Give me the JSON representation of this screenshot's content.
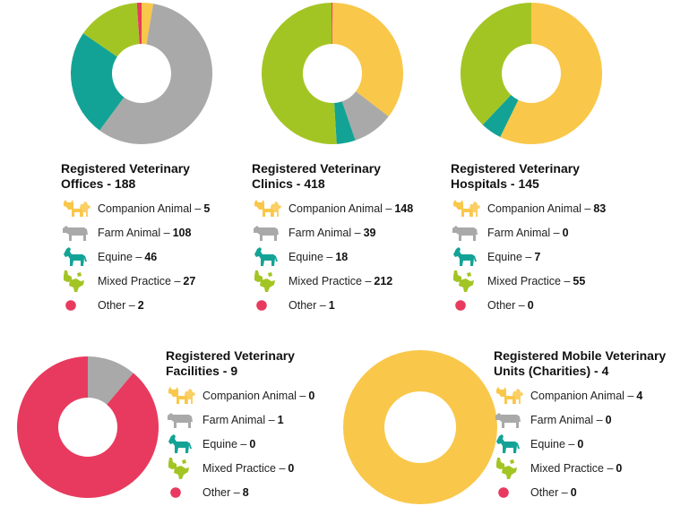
{
  "colors": {
    "companion": "#F9C74A",
    "farm": "#A9A9A9",
    "equine": "#13A396",
    "mixed": "#A3C524",
    "other": "#E83A5E"
  },
  "icons": {
    "companion": "cat-and-dog-icon",
    "farm": "cow-icon",
    "equine": "horse-icon",
    "mixed": "mixed-animals-icon",
    "other": "dot-icon"
  },
  "chart_data": [
    {
      "type": "pie",
      "title_line1": "Registered Veterinary",
      "title_line2": "Offices - 188",
      "categories": [
        "Companion Animal",
        "Farm Animal",
        "Equine",
        "Mixed Practice",
        "Other"
      ],
      "labels": [
        "Companion Animal –",
        "Farm Animal –",
        "Equine –",
        "Mixed Practice –",
        "Other –"
      ],
      "values": [
        5,
        108,
        46,
        27,
        2
      ]
    },
    {
      "type": "pie",
      "title_line1": "Registered Veterinary",
      "title_line2": "Clinics - 418",
      "categories": [
        "Companion Animal",
        "Farm Animal",
        "Equine",
        "Mixed Practice",
        "Other"
      ],
      "labels": [
        "Companion Animal –",
        "Farm Animal –",
        "Equine –",
        "Mixed Practice –",
        "Other –"
      ],
      "values": [
        148,
        39,
        18,
        212,
        1
      ]
    },
    {
      "type": "pie",
      "title_line1": "Registered Veterinary",
      "title_line2": "Hospitals - 145",
      "categories": [
        "Companion Animal",
        "Farm Animal",
        "Equine",
        "Mixed Practice",
        "Other"
      ],
      "labels": [
        "Companion Animal –",
        "Farm Animal –",
        "Equine –",
        "Mixed Practice –",
        "Other –"
      ],
      "values": [
        83,
        0,
        7,
        55,
        0
      ]
    },
    {
      "type": "pie",
      "title_line1": "Registered Veterinary",
      "title_line2": "Facilities - 9",
      "categories": [
        "Companion Animal",
        "Farm Animal",
        "Equine",
        "Mixed Practice",
        "Other"
      ],
      "labels": [
        "Companion Animal –",
        "Farm Animal –",
        "Equine –",
        "Mixed Practice –",
        "Other –"
      ],
      "values": [
        0,
        1,
        0,
        0,
        8
      ]
    },
    {
      "type": "pie",
      "title_line1": "Registered Mobile Veterinary",
      "title_line2": "Units (Charities) - 4",
      "categories": [
        "Companion Animal",
        "Farm Animal",
        "Equine",
        "Mixed Practice",
        "Other"
      ],
      "labels": [
        "Companion Animal –",
        "Farm Animal –",
        "Equine –",
        "Mixed Practice –",
        "Other –"
      ],
      "values": [
        4,
        0,
        0,
        0,
        0
      ]
    }
  ]
}
